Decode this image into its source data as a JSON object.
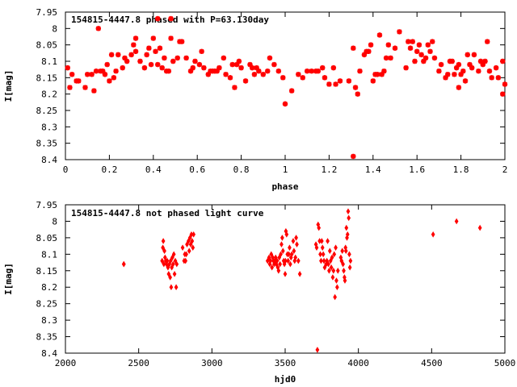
{
  "chart_data": [
    {
      "type": "scatter",
      "title": "154815-4447.8 phased with P=63.130day",
      "xlabel": "phase",
      "ylabel": "I[mag]",
      "xlim": [
        0,
        2
      ],
      "ylim": [
        7.95,
        8.4
      ],
      "y_inverted": true,
      "grid": false,
      "marker_color": "#ff0000",
      "x_ticks": [
        "0",
        "0.2",
        "0.4",
        "0.6",
        "0.8",
        "1",
        "1.2",
        "1.4",
        "1.6",
        "1.8",
        "2"
      ],
      "y_ticks": [
        "7.95",
        "8",
        "8.05",
        "8.1",
        "8.15",
        "8.2",
        "8.25",
        "8.3",
        "8.35",
        "8.4"
      ],
      "points": [
        [
          0.01,
          8.12
        ],
        [
          0.02,
          8.18
        ],
        [
          0.03,
          8.14
        ],
        [
          0.05,
          8.16
        ],
        [
          0.06,
          8.16
        ],
        [
          0.09,
          8.18
        ],
        [
          0.1,
          8.14
        ],
        [
          0.12,
          8.14
        ],
        [
          0.13,
          8.19
        ],
        [
          0.14,
          8.13
        ],
        [
          0.16,
          8.13
        ],
        [
          0.15,
          8.0
        ],
        [
          0.17,
          8.13
        ],
        [
          0.18,
          8.14
        ],
        [
          0.19,
          8.11
        ],
        [
          0.2,
          8.16
        ],
        [
          0.21,
          8.08
        ],
        [
          0.22,
          8.15
        ],
        [
          0.23,
          8.13
        ],
        [
          0.24,
          8.08
        ],
        [
          0.26,
          8.12
        ],
        [
          0.27,
          8.09
        ],
        [
          0.28,
          8.1
        ],
        [
          0.3,
          8.08
        ],
        [
          0.32,
          8.07
        ],
        [
          0.34,
          8.1
        ],
        [
          0.31,
          8.05
        ],
        [
          0.32,
          8.03
        ],
        [
          0.36,
          8.12
        ],
        [
          0.37,
          8.08
        ],
        [
          0.38,
          8.06
        ],
        [
          0.39,
          8.11
        ],
        [
          0.4,
          8.03
        ],
        [
          0.41,
          8.07
        ],
        [
          0.42,
          8.11
        ],
        [
          0.43,
          8.06
        ],
        [
          0.44,
          8.12
        ],
        [
          0.45,
          8.09
        ],
        [
          0.46,
          8.13
        ],
        [
          0.47,
          8.13
        ],
        [
          0.48,
          8.03
        ],
        [
          0.49,
          8.1
        ],
        [
          0.42,
          7.97
        ],
        [
          0.48,
          7.97
        ],
        [
          0.51,
          8.09
        ],
        [
          0.52,
          8.04
        ],
        [
          0.53,
          8.04
        ],
        [
          0.55,
          8.09
        ],
        [
          0.57,
          8.13
        ],
        [
          0.58,
          8.12
        ],
        [
          0.59,
          8.1
        ],
        [
          0.61,
          8.11
        ],
        [
          0.62,
          8.07
        ],
        [
          0.63,
          8.12
        ],
        [
          0.65,
          8.14
        ],
        [
          0.66,
          8.13
        ],
        [
          0.67,
          8.13
        ],
        [
          0.68,
          8.13
        ],
        [
          0.69,
          8.13
        ],
        [
          0.7,
          8.12
        ],
        [
          0.72,
          8.09
        ],
        [
          0.73,
          8.14
        ],
        [
          0.75,
          8.15
        ],
        [
          0.76,
          8.11
        ],
        [
          0.77,
          8.18
        ],
        [
          0.78,
          8.11
        ],
        [
          0.79,
          8.1
        ],
        [
          0.8,
          8.12
        ],
        [
          0.82,
          8.16
        ],
        [
          0.84,
          8.11
        ],
        [
          0.85,
          8.12
        ],
        [
          0.86,
          8.14
        ],
        [
          0.87,
          8.12
        ],
        [
          0.88,
          8.13
        ],
        [
          0.9,
          8.14
        ],
        [
          0.92,
          8.13
        ],
        [
          0.93,
          8.09
        ],
        [
          0.95,
          8.11
        ],
        [
          0.97,
          8.13
        ],
        [
          0.99,
          8.15
        ],
        [
          1.0,
          8.23
        ],
        [
          1.03,
          8.19
        ],
        [
          1.06,
          8.14
        ],
        [
          1.08,
          8.15
        ],
        [
          1.1,
          8.13
        ],
        [
          1.12,
          8.13
        ],
        [
          1.14,
          8.13
        ],
        [
          1.15,
          8.13
        ],
        [
          1.17,
          8.12
        ],
        [
          1.18,
          8.15
        ],
        [
          1.2,
          8.17
        ],
        [
          1.22,
          8.12
        ],
        [
          1.23,
          8.17
        ],
        [
          1.25,
          8.16
        ],
        [
          1.29,
          8.16
        ],
        [
          1.31,
          8.06
        ],
        [
          1.32,
          8.18
        ],
        [
          1.33,
          8.2
        ],
        [
          1.34,
          8.13
        ],
        [
          1.36,
          8.08
        ],
        [
          1.37,
          8.07
        ],
        [
          1.38,
          8.07
        ],
        [
          1.39,
          8.05
        ],
        [
          1.4,
          8.16
        ],
        [
          1.41,
          8.14
        ],
        [
          1.42,
          8.14
        ],
        [
          1.43,
          8.02
        ],
        [
          1.44,
          8.14
        ],
        [
          1.45,
          8.13
        ],
        [
          1.46,
          8.09
        ],
        [
          1.47,
          8.05
        ],
        [
          1.48,
          8.09
        ],
        [
          1.5,
          8.06
        ],
        [
          1.52,
          8.01
        ],
        [
          1.31,
          8.39
        ],
        [
          1.55,
          8.12
        ],
        [
          1.56,
          8.04
        ],
        [
          1.57,
          8.06
        ],
        [
          1.58,
          8.04
        ],
        [
          1.59,
          8.1
        ],
        [
          1.6,
          8.07
        ],
        [
          1.61,
          8.05
        ],
        [
          1.62,
          8.08
        ],
        [
          1.63,
          8.1
        ],
        [
          1.64,
          8.09
        ],
        [
          1.66,
          8.07
        ],
        [
          1.67,
          8.04
        ],
        [
          1.68,
          8.09
        ],
        [
          1.7,
          8.13
        ],
        [
          1.71,
          8.11
        ],
        [
          1.73,
          8.15
        ],
        [
          1.74,
          8.14
        ],
        [
          1.75,
          8.1
        ],
        [
          1.76,
          8.1
        ],
        [
          1.77,
          8.14
        ],
        [
          1.78,
          8.12
        ],
        [
          1.79,
          8.11
        ],
        [
          1.8,
          8.14
        ],
        [
          1.81,
          8.13
        ],
        [
          1.82,
          8.16
        ],
        [
          1.83,
          8.08
        ],
        [
          1.84,
          8.11
        ],
        [
          1.85,
          8.12
        ],
        [
          1.86,
          8.08
        ],
        [
          1.88,
          8.13
        ],
        [
          1.89,
          8.1
        ],
        [
          1.9,
          8.11
        ],
        [
          1.91,
          8.1
        ],
        [
          1.92,
          8.04
        ],
        [
          1.93,
          8.13
        ],
        [
          1.94,
          8.15
        ],
        [
          1.96,
          8.12
        ],
        [
          1.97,
          8.15
        ],
        [
          1.99,
          8.2
        ],
        [
          1.99,
          8.1
        ],
        [
          2.0,
          8.17
        ],
        [
          1.79,
          8.18
        ],
        [
          1.65,
          8.05
        ]
      ]
    },
    {
      "type": "scatter",
      "title": "154815-4447.8 not phased light curve",
      "xlabel": "hjd0",
      "ylabel": "I[mag]",
      "xlim": [
        2000,
        5000
      ],
      "ylim": [
        7.95,
        8.4
      ],
      "y_inverted": true,
      "grid": false,
      "marker_color": "#ff0000",
      "x_ticks": [
        "2000",
        "2500",
        "3000",
        "3500",
        "4000",
        "4500",
        "5000"
      ],
      "y_ticks": [
        "7.95",
        "8",
        "8.05",
        "8.1",
        "8.15",
        "8.2",
        "8.25",
        "8.3",
        "8.35",
        "8.4"
      ],
      "points": [
        [
          2398,
          8.13
        ],
        [
          2399,
          8.13
        ],
        [
          2660,
          8.12
        ],
        [
          2665,
          8.08
        ],
        [
          2668,
          8.06
        ],
        [
          2672,
          8.13
        ],
        [
          2676,
          8.09
        ],
        [
          2680,
          8.11
        ],
        [
          2685,
          8.12
        ],
        [
          2690,
          8.13
        ],
        [
          2695,
          8.12
        ],
        [
          2700,
          8.14
        ],
        [
          2705,
          8.16
        ],
        [
          2710,
          8.13
        ],
        [
          2715,
          8.17
        ],
        [
          2718,
          8.12
        ],
        [
          2722,
          8.2
        ],
        [
          2726,
          8.14
        ],
        [
          2730,
          8.11
        ],
        [
          2735,
          8.13
        ],
        [
          2740,
          8.1
        ],
        [
          2745,
          8.16
        ],
        [
          2750,
          8.12
        ],
        [
          2756,
          8.2
        ],
        [
          2760,
          8.13
        ],
        [
          2800,
          8.08
        ],
        [
          2810,
          8.12
        ],
        [
          2815,
          8.1
        ],
        [
          2820,
          8.12
        ],
        [
          2825,
          8.1
        ],
        [
          2830,
          8.07
        ],
        [
          2840,
          8.06
        ],
        [
          2845,
          8.09
        ],
        [
          2850,
          8.05
        ],
        [
          2855,
          8.07
        ],
        [
          2860,
          8.04
        ],
        [
          2865,
          8.06
        ],
        [
          2870,
          8.08
        ],
        [
          2875,
          8.04
        ],
        [
          3380,
          8.12
        ],
        [
          3390,
          8.11
        ],
        [
          3395,
          8.13
        ],
        [
          3400,
          8.12
        ],
        [
          3405,
          8.1
        ],
        [
          3410,
          8.14
        ],
        [
          3415,
          8.11
        ],
        [
          3420,
          8.12
        ],
        [
          3425,
          8.13
        ],
        [
          3430,
          8.12
        ],
        [
          3435,
          8.11
        ],
        [
          3440,
          8.13
        ],
        [
          3445,
          8.12
        ],
        [
          3450,
          8.14
        ],
        [
          3455,
          8.15
        ],
        [
          3460,
          8.11
        ],
        [
          3465,
          8.13
        ],
        [
          3470,
          8.1
        ],
        [
          3475,
          8.07
        ],
        [
          3480,
          8.05
        ],
        [
          3485,
          8.09
        ],
        [
          3490,
          8.12
        ],
        [
          3495,
          8.13
        ],
        [
          3500,
          8.16
        ],
        [
          3502,
          8.12
        ],
        [
          3505,
          8.03
        ],
        [
          3510,
          8.04
        ],
        [
          3515,
          8.1
        ],
        [
          3520,
          8.12
        ],
        [
          3525,
          8.1
        ],
        [
          3530,
          8.08
        ],
        [
          3535,
          8.13
        ],
        [
          3540,
          8.11
        ],
        [
          3545,
          8.1
        ],
        [
          3555,
          8.06
        ],
        [
          3560,
          8.09
        ],
        [
          3565,
          8.12
        ],
        [
          3570,
          8.11
        ],
        [
          3575,
          8.05
        ],
        [
          3580,
          8.07
        ],
        [
          3590,
          8.12
        ],
        [
          3600,
          8.16
        ],
        [
          3710,
          8.07
        ],
        [
          3715,
          8.08
        ],
        [
          3720,
          8.39
        ],
        [
          3725,
          8.01
        ],
        [
          3730,
          8.02
        ],
        [
          3735,
          8.06
        ],
        [
          3740,
          8.1
        ],
        [
          3745,
          8.12
        ],
        [
          3750,
          8.06
        ],
        [
          3755,
          8.08
        ],
        [
          3760,
          8.1
        ],
        [
          3765,
          8.12
        ],
        [
          3770,
          8.14
        ],
        [
          3780,
          8.13
        ],
        [
          3785,
          8.12
        ],
        [
          3790,
          8.06
        ],
        [
          3795,
          8.13
        ],
        [
          3800,
          8.15
        ],
        [
          3805,
          8.09
        ],
        [
          3810,
          8.12
        ],
        [
          3815,
          8.14
        ],
        [
          3820,
          8.11
        ],
        [
          3825,
          8.17
        ],
        [
          3830,
          8.15
        ],
        [
          3835,
          8.1
        ],
        [
          3840,
          8.23
        ],
        [
          3845,
          8.08
        ],
        [
          3850,
          8.18
        ],
        [
          3855,
          8.2
        ],
        [
          3860,
          8.15
        ],
        [
          3880,
          8.11
        ],
        [
          3885,
          8.12
        ],
        [
          3890,
          8.09
        ],
        [
          3895,
          8.13
        ],
        [
          3900,
          8.15
        ],
        [
          3905,
          8.17
        ],
        [
          3908,
          8.18
        ],
        [
          3912,
          8.08
        ],
        [
          3915,
          8.09
        ],
        [
          3918,
          8.02
        ],
        [
          3922,
          8.05
        ],
        [
          3926,
          8.04
        ],
        [
          3930,
          7.97
        ],
        [
          3934,
          7.99
        ],
        [
          3938,
          8.1
        ],
        [
          3942,
          8.14
        ],
        [
          3946,
          8.12
        ],
        [
          4510,
          8.04
        ],
        [
          4670,
          8.0
        ],
        [
          4830,
          8.02
        ]
      ]
    }
  ]
}
